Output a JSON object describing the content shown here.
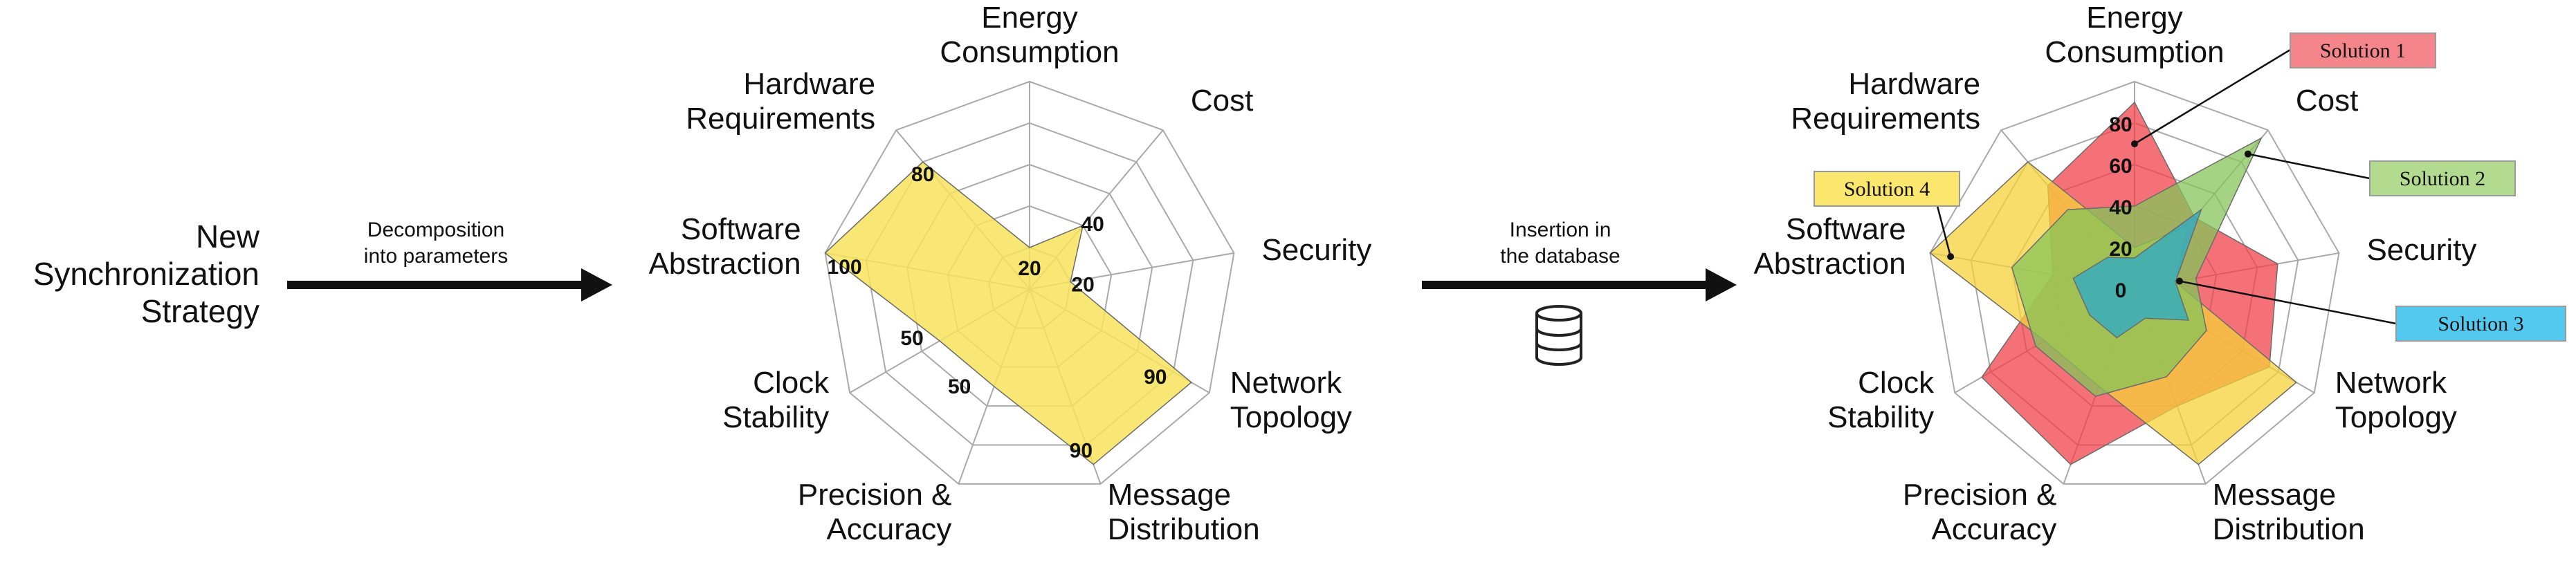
{
  "left": {
    "title_lines": [
      "New",
      "Synchronization",
      "Strategy"
    ],
    "arrow_label_lines": [
      "Decomposition",
      "into parameters"
    ]
  },
  "middle": {
    "arrow_label_lines": [
      "Insertion in",
      "the database"
    ],
    "database_icon": "database-icon"
  },
  "axes": [
    {
      "id": "energy",
      "lines": [
        "Energy",
        "Consumption"
      ]
    },
    {
      "id": "cost",
      "lines": [
        "Cost"
      ]
    },
    {
      "id": "security",
      "lines": [
        "Security"
      ]
    },
    {
      "id": "network",
      "lines": [
        "Network",
        "Topology"
      ]
    },
    {
      "id": "message",
      "lines": [
        "Message",
        "Distribution"
      ]
    },
    {
      "id": "precision",
      "lines": [
        "Precision &",
        "Accuracy"
      ]
    },
    {
      "id": "clock",
      "lines": [
        "Clock",
        "Stability"
      ]
    },
    {
      "id": "software",
      "lines": [
        "Software",
        "Abstraction"
      ]
    },
    {
      "id": "hardware",
      "lines": [
        "Hardware",
        "Requirements"
      ]
    }
  ],
  "chart_data": [
    {
      "type": "radar",
      "axes": [
        "Energy Consumption",
        "Cost",
        "Security",
        "Network Topology",
        "Message Distribution",
        "Precision & Accuracy",
        "Clock Stability",
        "Software Abstraction",
        "Hardware Requirements"
      ],
      "range": [
        0,
        100
      ],
      "series": [
        {
          "values": [
            20,
            40,
            20,
            90,
            90,
            50,
            50,
            100,
            80
          ],
          "color": "#f7e35c"
        }
      ],
      "value_labels": [
        "20",
        "40",
        "20",
        "90",
        "90",
        "50",
        "50",
        "100",
        "80"
      ]
    },
    {
      "type": "radar",
      "axes": [
        "Energy Consumption",
        "Cost",
        "Security",
        "Network Topology",
        "Message Distribution",
        "Precision & Accuracy",
        "Clock Stability",
        "Software Abstraction",
        "Hardware Requirements"
      ],
      "range": [
        0,
        100
      ],
      "tick_labels": [
        "0",
        "20",
        "40",
        "60",
        "80"
      ],
      "series": [
        {
          "name": "Solution 1",
          "values": [
            90,
            45,
            70,
            75,
            60,
            90,
            85,
            40,
            65
          ],
          "color": "#f0414b",
          "label_bg": "#f4858a"
        },
        {
          "name": "Solution 2",
          "values": [
            40,
            95,
            30,
            40,
            45,
            55,
            55,
            60,
            50
          ],
          "color": "#86c45a",
          "label_bg": "#b3db8f"
        },
        {
          "name": "Solution 3",
          "values": [
            15,
            50,
            20,
            30,
            15,
            25,
            25,
            30,
            20
          ],
          "color": "#2aa9c9",
          "label_bg": "#54c9ef"
        },
        {
          "name": "Solution 4",
          "values": [
            20,
            40,
            20,
            90,
            90,
            50,
            50,
            100,
            80
          ],
          "color": "#f7d23a",
          "label_bg": "#fbe66e"
        }
      ]
    }
  ]
}
